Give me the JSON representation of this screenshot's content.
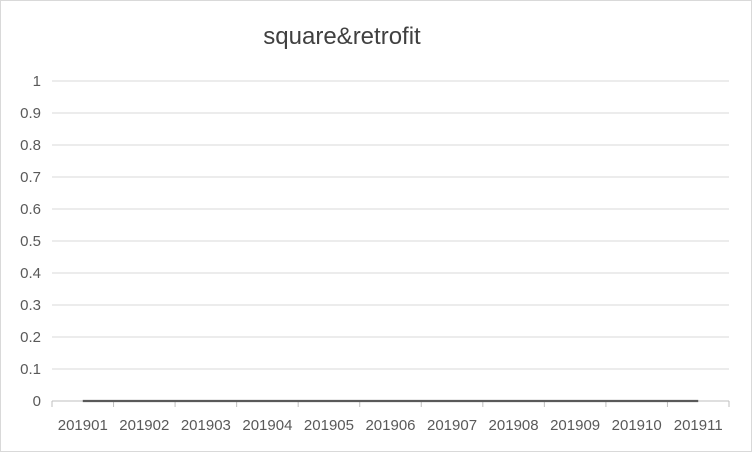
{
  "chart_data": {
    "type": "line",
    "title": "square&retrofit",
    "xlabel": "",
    "ylabel": "",
    "categories": [
      "201901",
      "201902",
      "201903",
      "201904",
      "201905",
      "201906",
      "201907",
      "201908",
      "201909",
      "201910",
      "201911"
    ],
    "series": [
      {
        "values": [
          0,
          0,
          0,
          0,
          0,
          0,
          0,
          0,
          0,
          0,
          0
        ]
      }
    ],
    "ylim": [
      0,
      1
    ],
    "yticks": [
      "0",
      "0.1",
      "0.2",
      "0.3",
      "0.4",
      "0.5",
      "0.6",
      "0.7",
      "0.8",
      "0.9",
      "1"
    ],
    "grid": true,
    "colors": {
      "line": "#595959",
      "grid": "#d9d9d9",
      "axis": "#bfbfbf",
      "text": "#595959",
      "title": "#404040"
    }
  }
}
